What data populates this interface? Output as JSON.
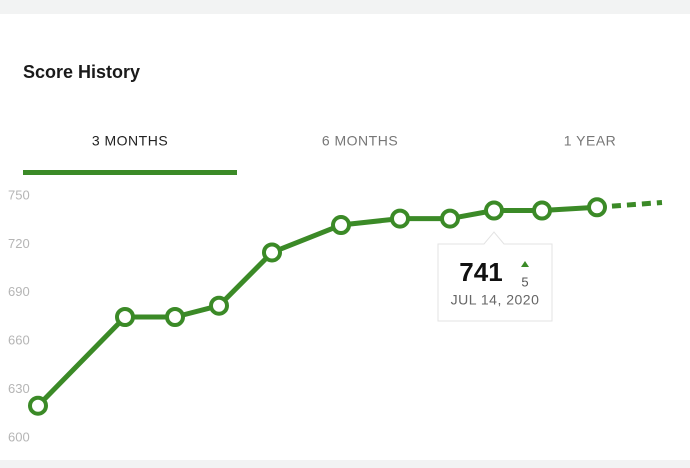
{
  "header": {
    "title": "Score History"
  },
  "tabs": {
    "items": [
      "3 MONTHS",
      "6 MONTHS",
      "1 YEAR"
    ],
    "active": 0
  },
  "chart_data": {
    "type": "line",
    "categories": [
      null,
      null,
      null,
      null,
      null,
      null,
      null,
      null,
      null,
      null,
      null,
      null
    ],
    "series": [
      {
        "color": "#3b8a27",
        "values": [
          620,
          675,
          675,
          682,
          715,
          732,
          736,
          736,
          741,
          741,
          743,
          null
        ]
      },
      {
        "color": "#3b8a27",
        "dashed": true,
        "values": [
          null,
          null,
          null,
          null,
          null,
          null,
          null,
          null,
          null,
          null,
          743,
          746
        ]
      }
    ],
    "ylim": [
      600,
      750
    ],
    "yticks": [
      600,
      630,
      660,
      690,
      720,
      750
    ],
    "tooltip": {
      "index": 8,
      "value": 741,
      "change": 5,
      "date": "JUL 14, 2020"
    }
  }
}
